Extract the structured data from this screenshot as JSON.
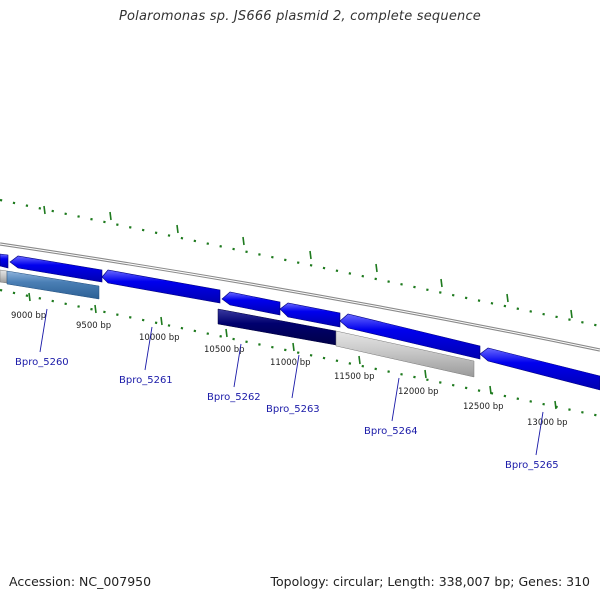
{
  "title": "Polaromonas sp. JS666 plasmid 2, complete sequence",
  "footer": {
    "accession": "Accession: NC_007950",
    "topology": "Topology: circular; Length: 338,007 bp; Genes: 310"
  },
  "colors": {
    "backbone": "#8a8a8a",
    "tick": "#1e7a1e",
    "gene_forward": "#0000ee",
    "gene_label": "#1a1aa8",
    "gene_light_blue": "#4a7fb5",
    "gene_dark_navy": "#00006e",
    "gene_gray": "#c4c4c4"
  },
  "ticks": {
    "labels": [
      "9000 bp",
      "9500 bp",
      "10000 bp",
      "10500 bp",
      "11000 bp",
      "11500 bp",
      "12000 bp",
      "12500 bp",
      "13000 bp"
    ]
  },
  "genes": [
    {
      "label": "Bpro_5260"
    },
    {
      "label": "Bpro_5261"
    },
    {
      "label": "Bpro_5262"
    },
    {
      "label": "Bpro_5263"
    },
    {
      "label": "Bpro_5264"
    },
    {
      "label": "Bpro_5265"
    }
  ]
}
